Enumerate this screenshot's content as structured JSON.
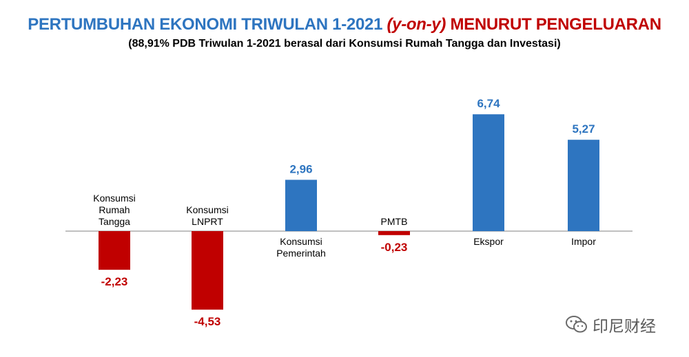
{
  "title": {
    "part1": "PERTUMBUHAN EKONOMI TRIWULAN 1-2021 ",
    "part2": "(y-on-y)",
    "part3": " MENURUT PENGELUARAN"
  },
  "subtitle": "(88,91% PDB Triwulan 1-2021 berasal dari Konsumsi Rumah Tangga dan Investasi)",
  "watermark": "印尼财经",
  "colors": {
    "positive": "#2e75c0",
    "negative": "#c00000",
    "title_blue": "#2e75c0",
    "title_red": "#c00000"
  },
  "chart_data": {
    "type": "bar",
    "categories": [
      [
        "Konsumsi",
        "Rumah",
        "Tangga"
      ],
      [
        "Konsumsi",
        "LNPRT"
      ],
      [
        "Konsumsi",
        "Pemerintah"
      ],
      [
        "PMTB"
      ],
      [
        "Ekspor"
      ],
      [
        "Impor"
      ]
    ],
    "values": [
      -2.23,
      -4.53,
      2.96,
      -0.23,
      6.74,
      5.27
    ],
    "value_labels": [
      "-2,23",
      "-4,53",
      "2,96",
      "-0,23",
      "6,74",
      "5,27"
    ],
    "ylim": [
      -4.53,
      6.74
    ],
    "grid": false,
    "legend": "none"
  }
}
